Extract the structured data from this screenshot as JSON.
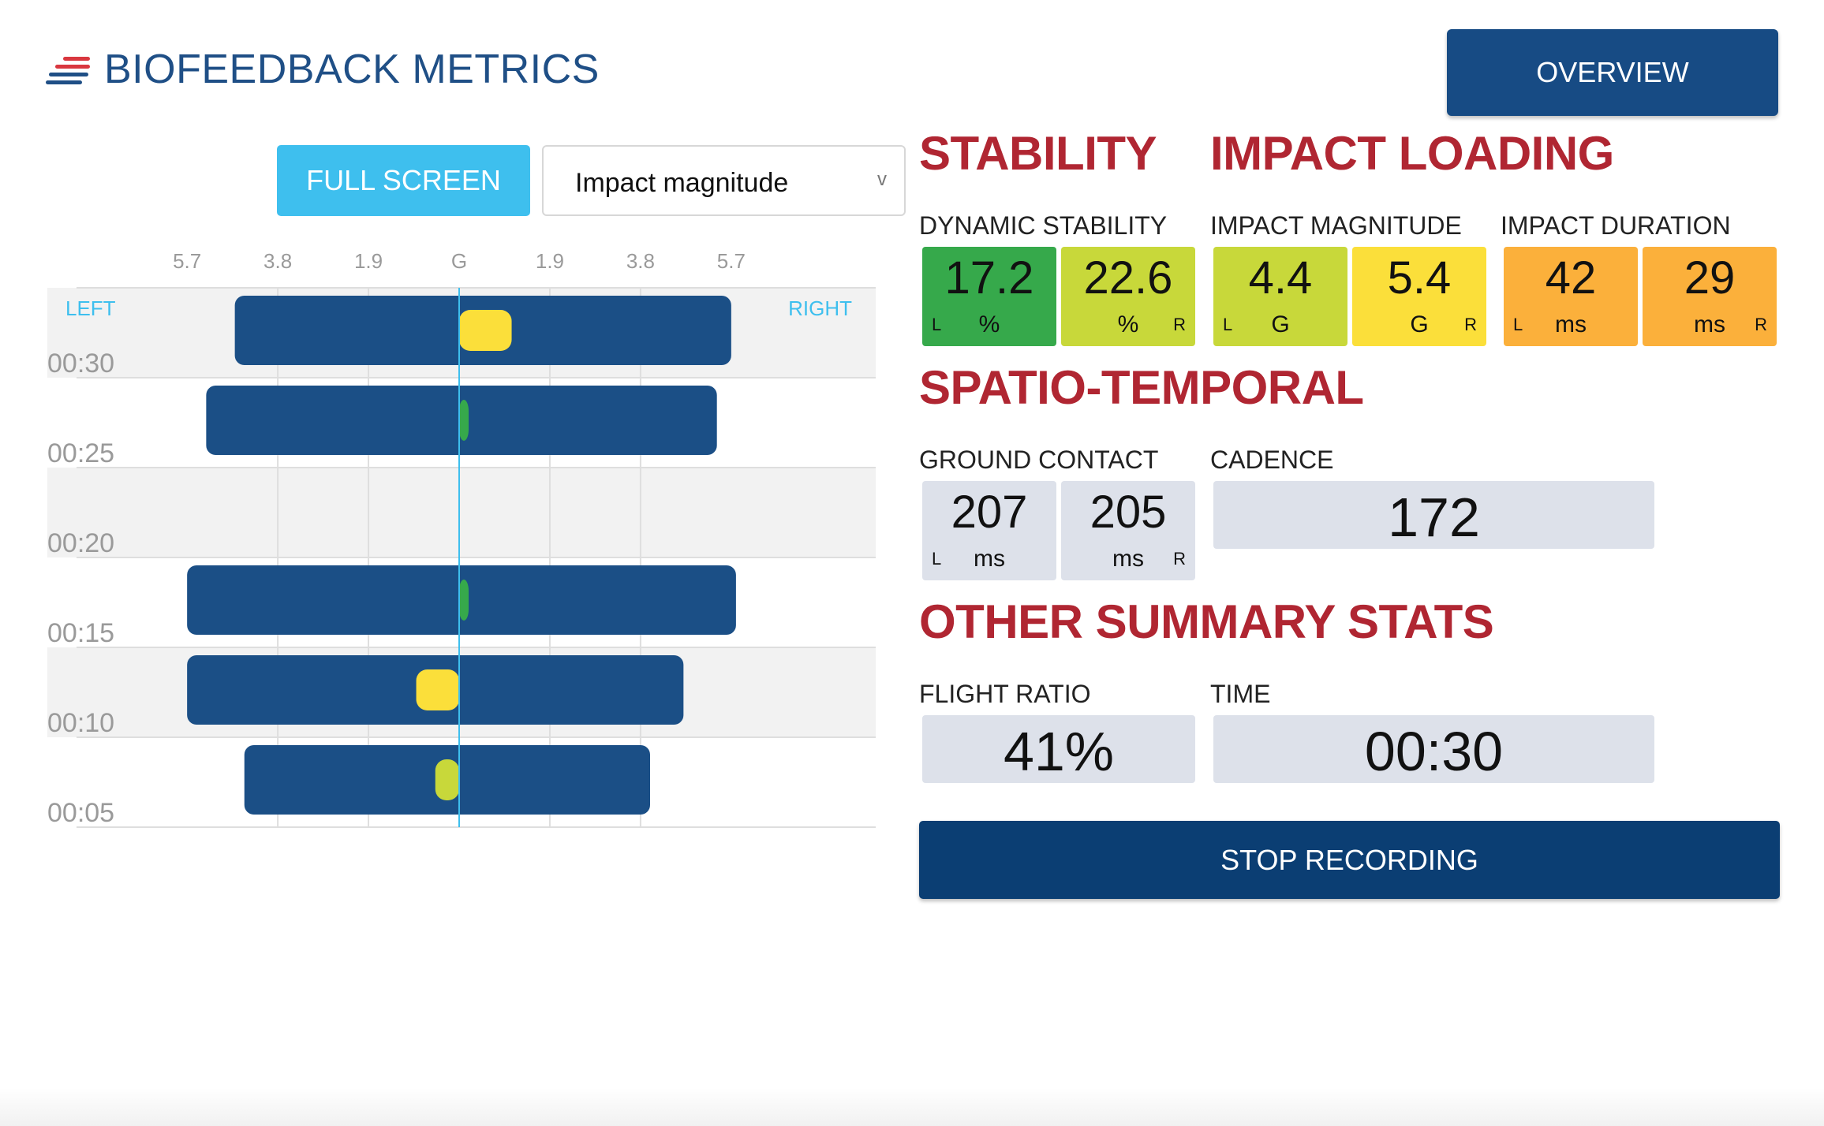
{
  "header": {
    "title": "BIOFEEDBACK METRICS",
    "overview_label": "OVERVIEW"
  },
  "controls": {
    "fullscreen_label": "FULL SCREEN",
    "metric_selected": "Impact magnitude"
  },
  "chart_data": {
    "type": "bar",
    "x_ticks": [
      "5.7",
      "3.8",
      "1.9",
      "G",
      "1.9",
      "3.8",
      "5.7"
    ],
    "left_label": "LEFT",
    "right_label": "RIGHT",
    "rows": [
      {
        "time": "00:30",
        "left": 4.7,
        "right": 5.7,
        "indicator": 1.1,
        "indicator_color": "#fbdf3a"
      },
      {
        "time": "00:25",
        "left": 5.3,
        "right": 5.4,
        "indicator": 0.15,
        "indicator_color": "#36a94b"
      },
      {
        "time": "00:20",
        "left": 0,
        "right": 0,
        "indicator": 0,
        "indicator_color": ""
      },
      {
        "time": "00:15",
        "left": 5.7,
        "right": 5.8,
        "indicator": 0.15,
        "indicator_color": "#36a94b"
      },
      {
        "time": "00:10",
        "left": 5.7,
        "right": 4.7,
        "indicator": -0.9,
        "indicator_color": "#fbdf3a"
      },
      {
        "time": "00:05",
        "left": 4.5,
        "right": 4.0,
        "indicator": -0.5,
        "indicator_color": "#c8d83a"
      }
    ],
    "colors": {
      "bar": "#1b4f86",
      "stripe": "#f2f2f2",
      "center": "#3ebfee"
    }
  },
  "stability": {
    "title": "STABILITY",
    "dynamic_label": "DYNAMIC STABILITY",
    "left_value": "17.2",
    "left_unit": "%",
    "right_value": "22.6",
    "right_unit": "%"
  },
  "impact": {
    "title": "IMPACT LOADING",
    "magnitude_label": "IMPACT MAGNITUDE",
    "mag_left": "4.4",
    "mag_left_unit": "G",
    "mag_right": "5.4",
    "mag_right_unit": "G",
    "duration_label": "IMPACT DURATION",
    "dur_left": "42",
    "dur_left_unit": "ms",
    "dur_right": "29",
    "dur_right_unit": "ms"
  },
  "spatio": {
    "title": "SPATIO-TEMPORAL",
    "ground_label": "GROUND CONTACT",
    "gc_left": "207",
    "gc_left_unit": "ms",
    "gc_right": "205",
    "gc_right_unit": "ms",
    "cadence_label": "CADENCE",
    "cadence_value": "172"
  },
  "other": {
    "title": "OTHER SUMMARY STATS",
    "flight_label": "FLIGHT RATIO",
    "flight_value": "41%",
    "time_label": "TIME",
    "time_value": "00:30"
  },
  "side_markers": {
    "left": "L",
    "right": "R"
  },
  "stop_label": "STOP RECORDING",
  "colors": {
    "green": "#36a94b",
    "lime": "#c8d83a",
    "yellow": "#fbdf3a",
    "orange": "#fbb03b",
    "neutral": "#dde1ea",
    "accent_red": "#b02632",
    "navy": "#174b84"
  }
}
